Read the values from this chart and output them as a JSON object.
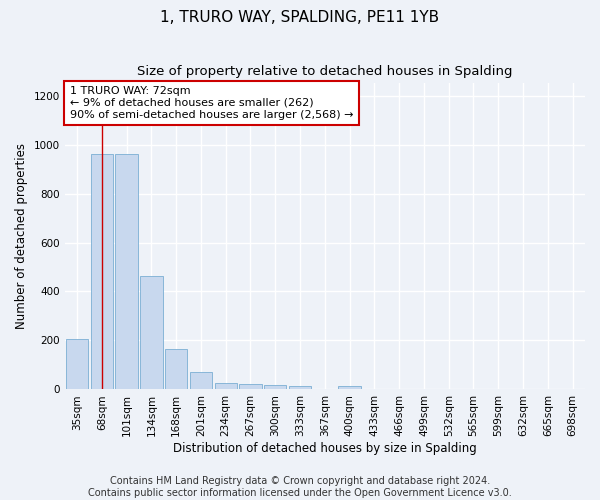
{
  "title": "1, TRURO WAY, SPALDING, PE11 1YB",
  "subtitle": "Size of property relative to detached houses in Spalding",
  "xlabel": "Distribution of detached houses by size in Spalding",
  "ylabel": "Number of detached properties",
  "footer_line1": "Contains HM Land Registry data © Crown copyright and database right 2024.",
  "footer_line2": "Contains public sector information licensed under the Open Government Licence v3.0.",
  "bar_color": "#c8d8ee",
  "bar_edge_color": "#7bafd4",
  "annotation_box_color": "#cc0000",
  "vline_color": "#cc0000",
  "annotation_text": "1 TRURO WAY: 72sqm\n← 9% of detached houses are smaller (262)\n90% of semi-detached houses are larger (2,568) →",
  "property_bin_index": 1,
  "categories": [
    "35sqm",
    "68sqm",
    "101sqm",
    "134sqm",
    "168sqm",
    "201sqm",
    "234sqm",
    "267sqm",
    "300sqm",
    "333sqm",
    "367sqm",
    "400sqm",
    "433sqm",
    "466sqm",
    "499sqm",
    "532sqm",
    "565sqm",
    "599sqm",
    "632sqm",
    "665sqm",
    "698sqm"
  ],
  "values": [
    205,
    960,
    960,
    465,
    165,
    70,
    28,
    22,
    20,
    14,
    0,
    13,
    0,
    0,
    0,
    0,
    0,
    0,
    0,
    0,
    0
  ],
  "ylim": [
    0,
    1250
  ],
  "yticks": [
    0,
    200,
    400,
    600,
    800,
    1000,
    1200
  ],
  "background_color": "#eef2f8",
  "grid_color": "#ffffff",
  "title_fontsize": 11,
  "subtitle_fontsize": 9.5,
  "axis_label_fontsize": 8.5,
  "tick_fontsize": 7.5,
  "annotation_fontsize": 8,
  "footer_fontsize": 7
}
